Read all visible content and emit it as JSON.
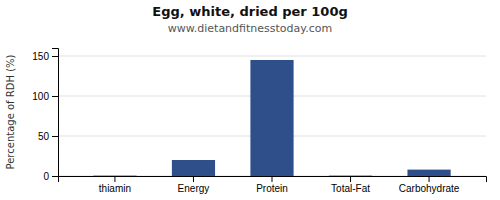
{
  "chart_data": {
    "type": "bar",
    "title": "Egg, white, dried per 100g",
    "subtitle": "www.dietandfitnesstoday.com",
    "ylabel": "Percentage of RDH (%)",
    "categories": [
      "thiamin",
      "Energy",
      "Protein",
      "Total-Fat",
      "Carbohydrate"
    ],
    "values": [
      0.5,
      20,
      145,
      0.5,
      8
    ],
    "color": "#2e4f8a",
    "ylim": [
      0,
      160
    ],
    "yticks": [
      0,
      50,
      100,
      150
    ],
    "grid": true
  }
}
